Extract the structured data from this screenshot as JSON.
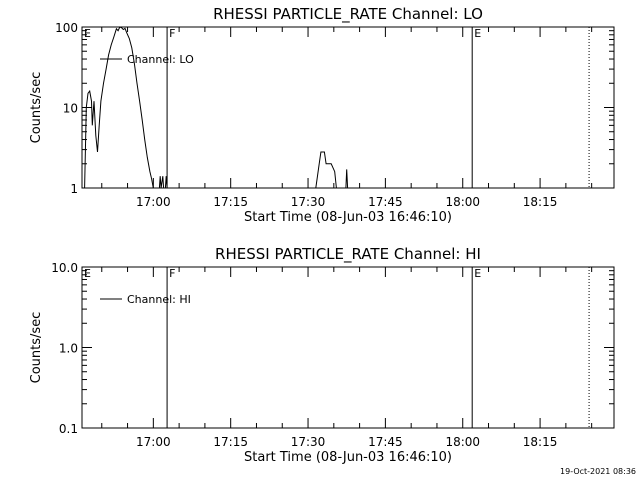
{
  "chart_data": [
    {
      "type": "line",
      "title": "RHESSI PARTICLE_RATE Channel: LO",
      "xlabel": "Start Time (08-Jun-03 16:46:10)",
      "ylabel": "Counts/sec",
      "yscale": "log",
      "ylim": [
        1,
        100
      ],
      "xlim": [
        "16:46:10",
        "18:29:20"
      ],
      "x_ticks": [
        "17:00",
        "17:15",
        "17:30",
        "17:45",
        "18:00",
        "18:15"
      ],
      "y_ticks": [
        "1",
        "10",
        "100"
      ],
      "legend": "top-left",
      "grid": false,
      "series": [
        {
          "name": "Channel: LO",
          "color": "#000000",
          "points": [
            [
              "16:46:10",
              1
            ],
            [
              "16:46:40",
              1
            ],
            [
              "16:47:00",
              10
            ],
            [
              "16:47:20",
              15
            ],
            [
              "16:47:40",
              16
            ],
            [
              "16:48:00",
              12
            ],
            [
              "16:48:10",
              6
            ],
            [
              "16:48:30",
              12
            ],
            [
              "16:48:50",
              4.5
            ],
            [
              "16:49:10",
              2.8
            ],
            [
              "16:49:30",
              6
            ],
            [
              "16:49:50",
              12
            ],
            [
              "16:50:20",
              20
            ],
            [
              "16:50:50",
              30
            ],
            [
              "16:51:20",
              45
            ],
            [
              "16:51:50",
              60
            ],
            [
              "16:52:20",
              75
            ],
            [
              "16:52:50",
              95
            ],
            [
              "16:53:10",
              90
            ],
            [
              "16:53:30",
              100
            ],
            [
              "16:53:50",
              98
            ],
            [
              "16:54:10",
              93
            ],
            [
              "16:54:30",
              96
            ],
            [
              "16:54:50",
              85
            ],
            [
              "16:55:20",
              72
            ],
            [
              "16:55:50",
              55
            ],
            [
              "16:56:20",
              35
            ],
            [
              "16:56:50",
              20
            ],
            [
              "16:57:20",
              12
            ],
            [
              "16:57:50",
              7
            ],
            [
              "16:58:20",
              4
            ],
            [
              "16:58:50",
              2.4
            ],
            [
              "16:59:20",
              1.6
            ],
            [
              "16:59:40",
              1.3
            ],
            [
              "17:00:00",
              1.0
            ]
          ],
          "fragments": [
            [
              [
                "17:01:10",
                1
              ],
              [
                "17:01:20",
                1.4
              ],
              [
                "17:01:30",
                1
              ],
              [
                "17:01:50",
                1.4
              ],
              [
                "17:02:00",
                1
              ]
            ],
            [
              [
                "17:02:20",
                1
              ],
              [
                "17:02:30",
                1.4
              ],
              [
                "17:02:40",
                1
              ]
            ],
            [
              [
                "17:31:30",
                1
              ],
              [
                "17:32:10",
                2
              ],
              [
                "17:32:30",
                2.8
              ],
              [
                "17:33:10",
                2.8
              ],
              [
                "17:33:30",
                2
              ],
              [
                "17:34:30",
                2
              ],
              [
                "17:35:10",
                1.6
              ],
              [
                "17:35:30",
                1
              ]
            ],
            [
              [
                "17:37:20",
                1
              ],
              [
                "17:37:30",
                1.7
              ],
              [
                "17:37:40",
                1
              ]
            ]
          ]
        }
      ],
      "markers": [
        {
          "label": "E",
          "time": "16:46:10",
          "style": "solid"
        },
        {
          "label": "F",
          "time": "17:02:40",
          "style": "solid"
        },
        {
          "label": "E",
          "time": "18:01:50",
          "style": "solid"
        },
        {
          "label": "",
          "time": "18:24:30",
          "style": "dotted"
        }
      ]
    },
    {
      "type": "line",
      "title": "RHESSI PARTICLE_RATE Channel: HI",
      "xlabel": "Start Time (08-Jun-03 16:46:10)",
      "ylabel": "Counts/sec",
      "yscale": "log",
      "ylim": [
        0.1,
        10
      ],
      "xlim": [
        "16:46:10",
        "18:29:20"
      ],
      "x_ticks": [
        "17:00",
        "17:15",
        "17:30",
        "17:45",
        "18:00",
        "18:15"
      ],
      "y_ticks": [
        "0.1",
        "1.0",
        "10.0"
      ],
      "legend": "top-left",
      "grid": false,
      "series": [
        {
          "name": "Channel: HI",
          "color": "#000000",
          "points": [],
          "fragments": []
        }
      ],
      "markers": [
        {
          "label": "E",
          "time": "16:46:10",
          "style": "solid"
        },
        {
          "label": "F",
          "time": "17:02:40",
          "style": "solid"
        },
        {
          "label": "E",
          "time": "18:01:50",
          "style": "solid"
        },
        {
          "label": "",
          "time": "18:24:30",
          "style": "dotted"
        }
      ]
    }
  ],
  "footer": {
    "timestamp": "19-Oct-2021 08:36"
  }
}
